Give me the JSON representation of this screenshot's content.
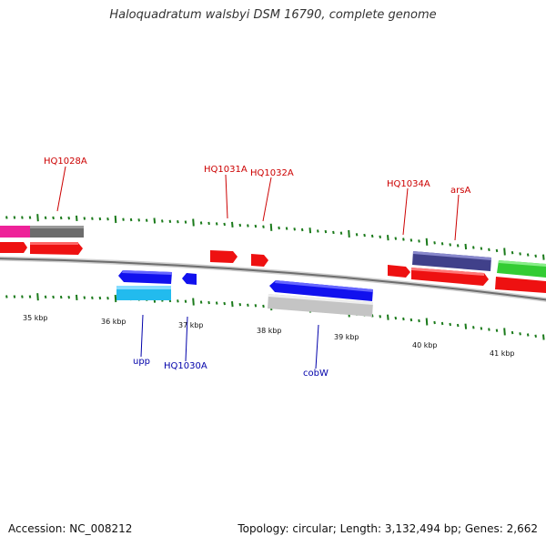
{
  "header": {
    "title": "Haloquadratum walsbyi DSM 16790, complete genome"
  },
  "footer": {
    "accession": "Accession: NC_008212",
    "topology": "Topology: circular; Length: 3,132,494 bp; Genes: 2,662"
  },
  "scale": {
    "kbp_labels": [
      "35 kbp",
      "36 kbp",
      "37 kbp",
      "38 kbp",
      "39 kbp",
      "40 kbp",
      "41 kbp"
    ]
  },
  "genes": {
    "forward": [
      "HQ1028A",
      "HQ1031A",
      "HQ1032A",
      "HQ1034A",
      "arsA"
    ],
    "reverse": [
      "upp",
      "HQ1030A",
      "cobW"
    ]
  },
  "colors": {
    "forward_label": "#cc0000",
    "reverse_label": "#0000aa",
    "tick": "#1a7a1a",
    "backbone": "#808080",
    "red_gene": "#ee1111",
    "blue_gene": "#1111ee",
    "cyan_gene": "#22bbee",
    "magenta_gene": "#ee2299",
    "gray_gene": "#707070",
    "silver_gene": "#c4c4c4",
    "navy_gene": "#40408a",
    "green_gene": "#33cc33"
  }
}
